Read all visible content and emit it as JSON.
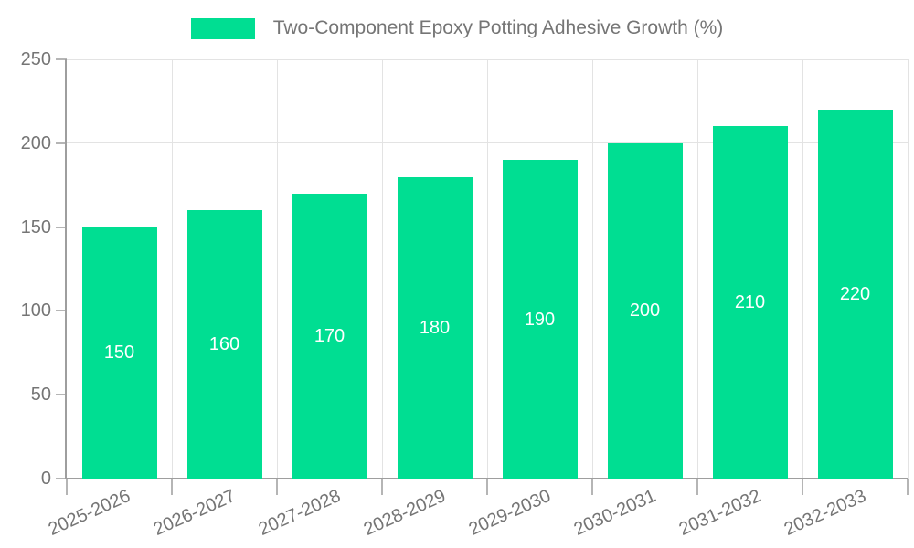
{
  "legend": {
    "label": "Two-Component Epoxy Potting Adhesive Growth (%)"
  },
  "chart_data": {
    "type": "bar",
    "title": "Two-Component Epoxy Potting Adhesive Growth (%)",
    "categories": [
      "2025-2026",
      "2026-2027",
      "2027-2028",
      "2028-2029",
      "2029-2030",
      "2030-2031",
      "2031-2032",
      "2032-2033"
    ],
    "values": [
      150,
      160,
      170,
      180,
      190,
      200,
      210,
      220
    ],
    "value_labels": [
      "150",
      "160",
      "170",
      "180",
      "190",
      "200",
      "210",
      "220"
    ],
    "xlabel": "",
    "ylabel": "",
    "ylim": [
      0,
      250
    ],
    "yticks": [
      0,
      50,
      100,
      150,
      200,
      250
    ],
    "grid": true,
    "legend_position": "top-center",
    "x_label_rotation_deg": -24,
    "colors": {
      "bar": "#00de92",
      "value_label": "#ffffff",
      "axis": "#9e9e9e",
      "tick": "#b5b5b5",
      "gridline": "#e3e3e3",
      "text": "#757575",
      "background": "#ffffff"
    }
  }
}
